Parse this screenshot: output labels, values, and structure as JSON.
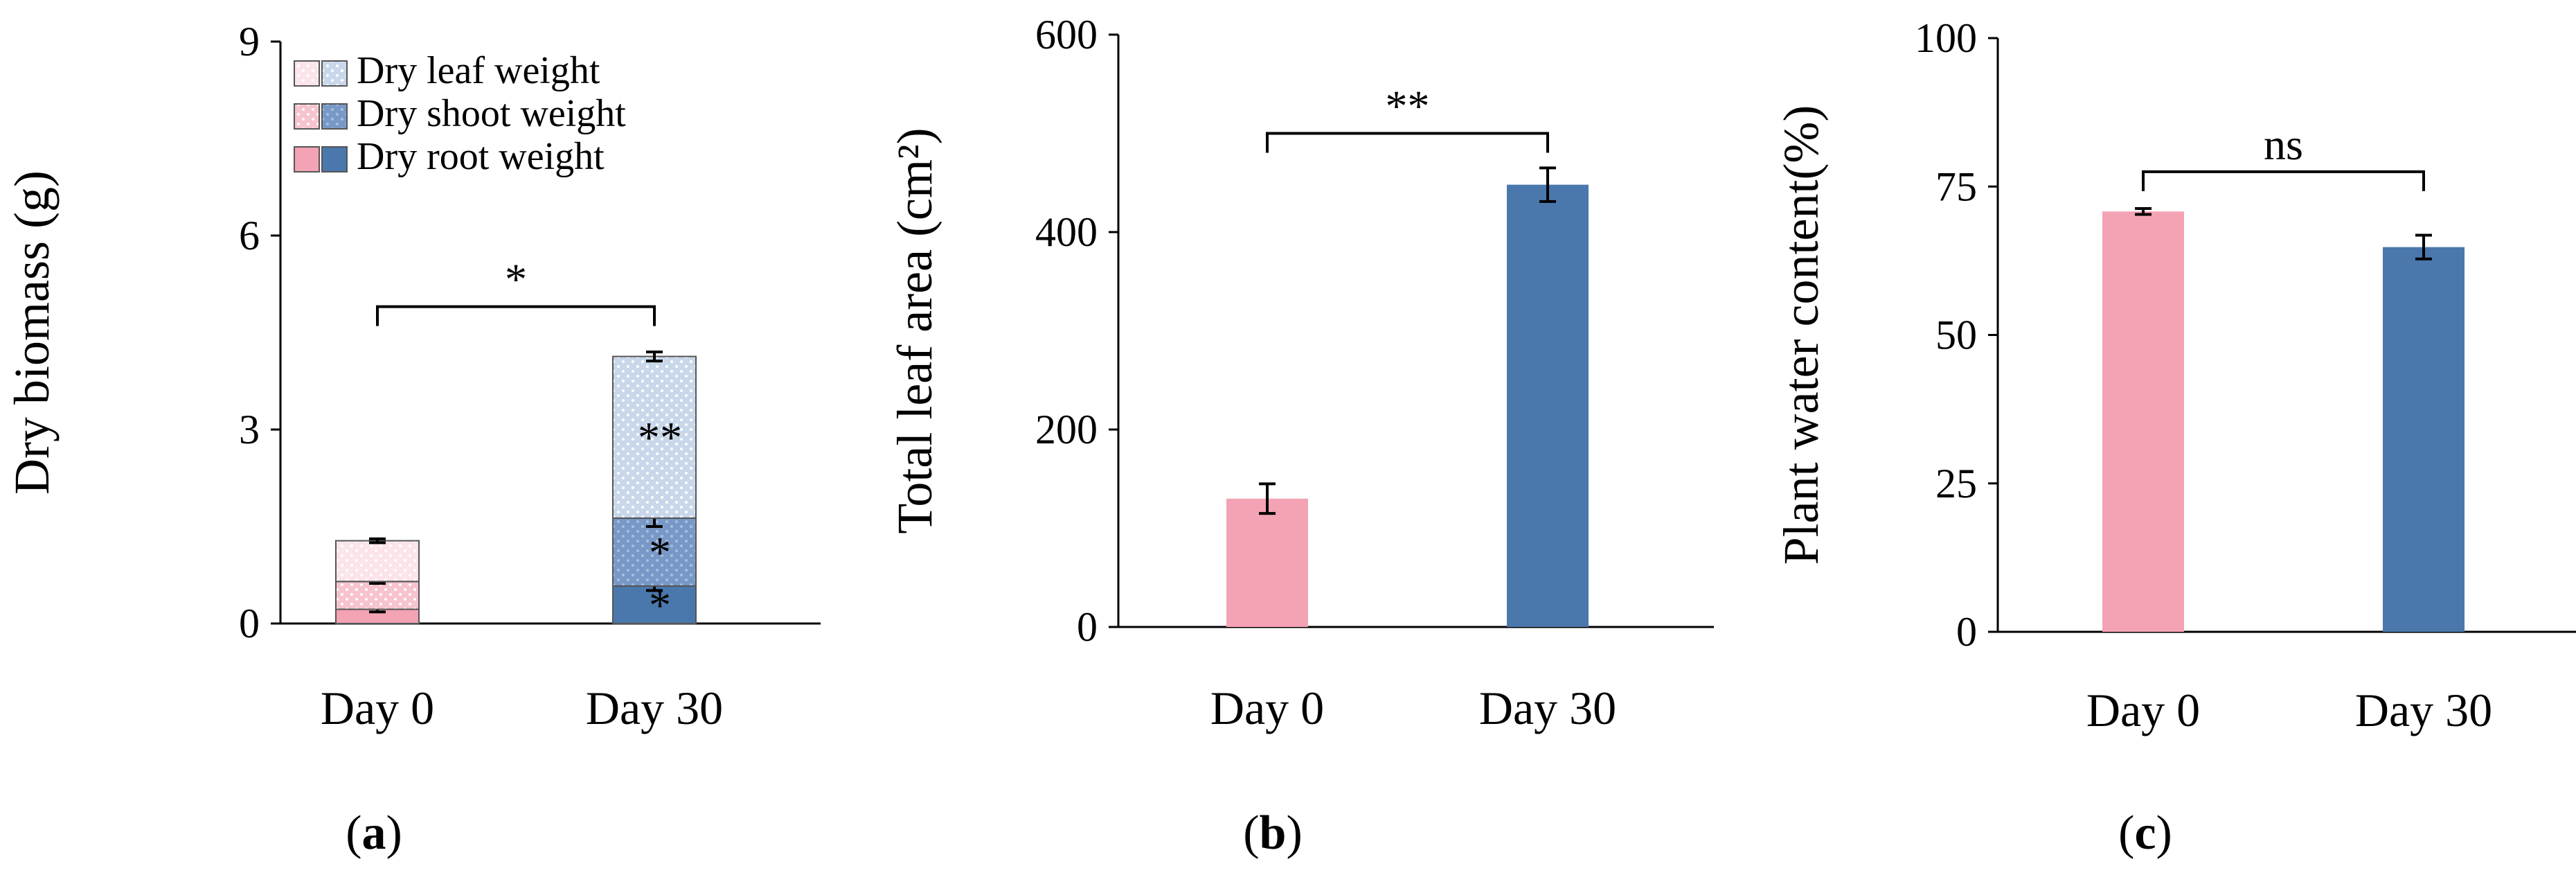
{
  "chart_data": [
    {
      "panel": "a",
      "type": "bar",
      "stacked": true,
      "ylabel": "Dry biomass  (g)",
      "ylim": [
        0,
        9
      ],
      "yticks": [
        "0",
        "3",
        "6",
        "9"
      ],
      "categories": [
        "Day 0",
        "Day 30"
      ],
      "series": [
        {
          "name": "Dry root weight",
          "values": [
            0.22,
            0.58
          ],
          "errors": [
            0.04,
            0.07
          ],
          "colors": [
            "#f4a3b4",
            "#4a78ad"
          ],
          "patterned": false,
          "significance": [
            "",
            "*"
          ]
        },
        {
          "name": "Dry shoot weight",
          "values": [
            0.43,
            1.05
          ],
          "errors": [
            0.03,
            0.13
          ],
          "colors": [
            "#f7c3cf",
            "#7899c7"
          ],
          "patterned": true,
          "significance": [
            "",
            "*"
          ]
        },
        {
          "name": "Dry leaf weight",
          "values": [
            0.63,
            2.5
          ],
          "errors": [
            0.03,
            0.07
          ],
          "colors": [
            "#fbe4ea",
            "#c9d7ea"
          ],
          "patterned": true,
          "significance": [
            "",
            "**"
          ]
        }
      ],
      "legend_order": [
        "Dry leaf weight",
        "Dry shoot weight",
        "Dry root weight"
      ],
      "bracket": {
        "label": "*",
        "y": 4.9
      },
      "panel_label": "a"
    },
    {
      "panel": "b",
      "type": "bar",
      "ylabel": "Total leaf area  (cm²)",
      "ylim": [
        0,
        600
      ],
      "yticks": [
        "0",
        "200",
        "400",
        "600"
      ],
      "categories": [
        "Day 0",
        "Day 30"
      ],
      "values": [
        130,
        448
      ],
      "errors": [
        15,
        17
      ],
      "colors": [
        "#f4a3b4",
        "#4a78ad"
      ],
      "bracket": {
        "label": "**",
        "y": 500
      },
      "panel_label": "b"
    },
    {
      "panel": "c",
      "type": "bar",
      "ylabel": "Plant water content(%)",
      "ylim": [
        0,
        100
      ],
      "yticks": [
        "0",
        "25",
        "50",
        "75",
        "100"
      ],
      "categories": [
        "Day 0",
        "Day 30"
      ],
      "values": [
        70.8,
        64.8
      ],
      "errors": [
        0.5,
        2.0
      ],
      "colors": [
        "#f4a3b4",
        "#4a78ad"
      ],
      "bracket": {
        "label": "ns",
        "y": 77.5
      },
      "panel_label": "c"
    }
  ]
}
